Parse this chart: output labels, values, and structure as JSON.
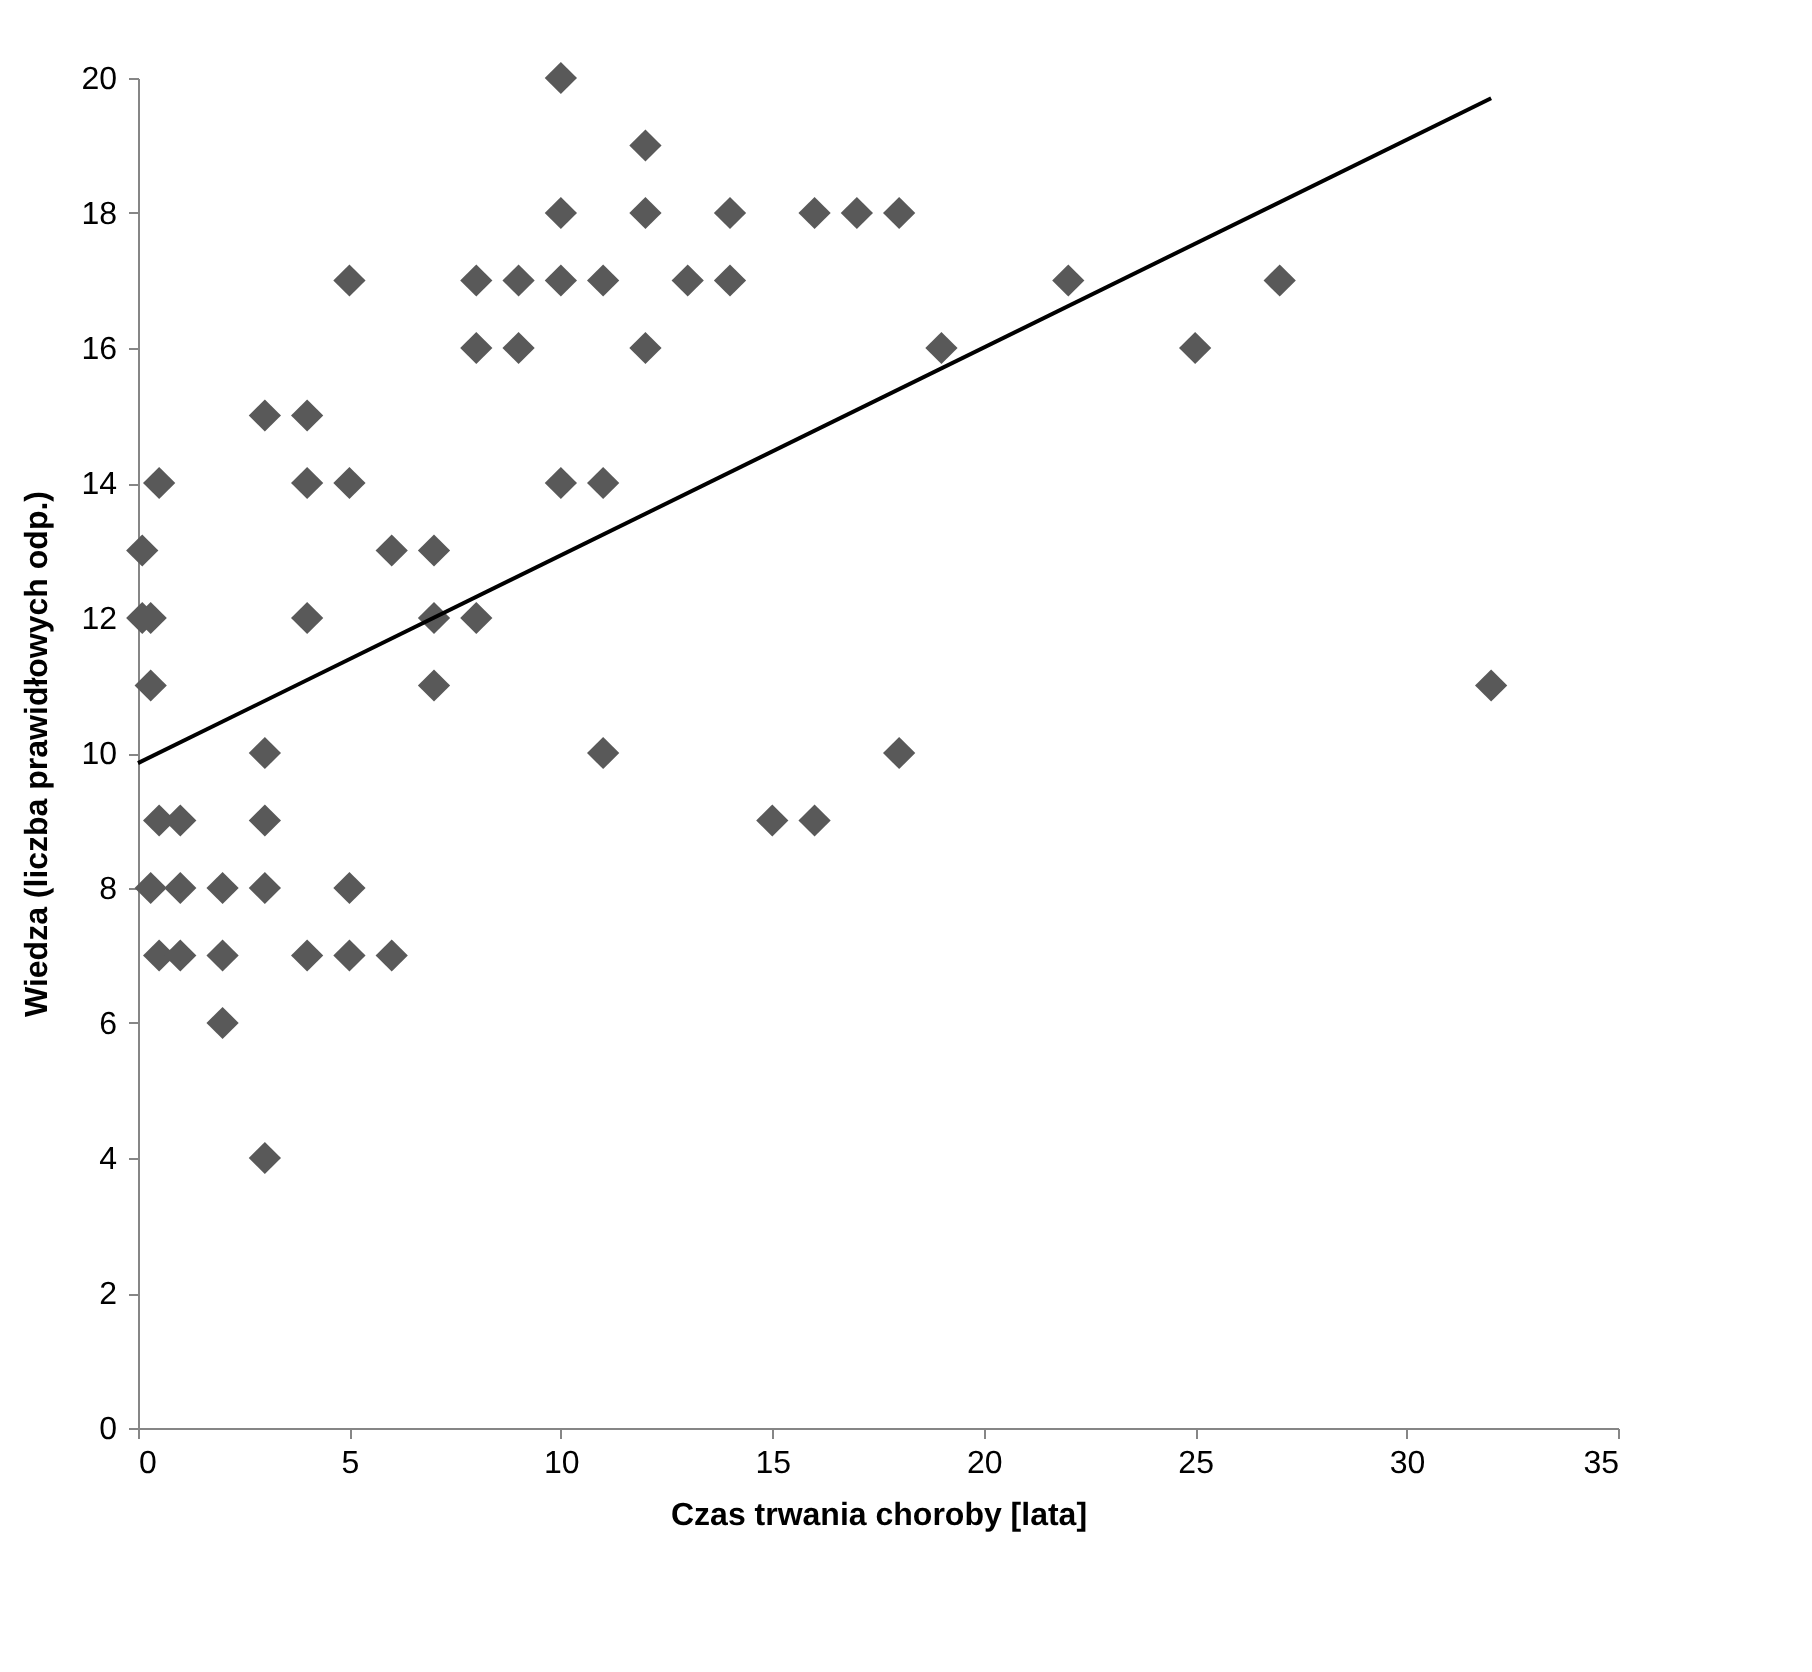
{
  "chart_data": {
    "type": "scatter",
    "xlabel": "Czas trwania choroby [lata]",
    "ylabel": "Wiedza (liczba prawidłowych odp.)",
    "xlim": [
      0,
      35
    ],
    "xticks": [
      0,
      5,
      10,
      15,
      20,
      25,
      30,
      35
    ],
    "ylim": [
      0,
      20
    ],
    "yticks": [
      0,
      2,
      4,
      6,
      8,
      10,
      12,
      14,
      16,
      18,
      20
    ],
    "grid": false,
    "series": [
      {
        "color": "#595959",
        "marker": "diamond",
        "x": [
          10,
          12,
          10,
          12,
          14,
          16,
          17,
          18,
          5,
          8,
          9,
          10,
          11,
          13,
          14,
          22,
          27,
          8,
          9,
          12,
          19,
          25,
          3,
          4,
          0.5,
          4,
          5,
          10,
          11,
          0.1,
          6,
          7,
          0.1,
          0.3,
          4,
          7,
          8,
          0.3,
          7,
          32,
          3,
          11,
          18,
          0.5,
          1,
          3,
          15,
          16,
          0.3,
          1,
          2,
          3,
          5,
          0.5,
          1,
          2,
          4,
          5,
          6,
          2,
          3
        ],
        "values": [
          20,
          19,
          18,
          18,
          18,
          18,
          18,
          18,
          17,
          17,
          17,
          17,
          17,
          17,
          17,
          17,
          17,
          16,
          16,
          16,
          16,
          16,
          15,
          15,
          14,
          14,
          14,
          14,
          14,
          13,
          13,
          13,
          12,
          12,
          12,
          12,
          12,
          11,
          11,
          11,
          10,
          10,
          10,
          9,
          9,
          9,
          9,
          9,
          8,
          8,
          8,
          8,
          8,
          7,
          7,
          7,
          7,
          7,
          7,
          6,
          4
        ]
      },
      {
        "type": "line",
        "color": "#000000",
        "x": [
          0,
          32
        ],
        "values": [
          9.85,
          19.7
        ]
      }
    ]
  }
}
